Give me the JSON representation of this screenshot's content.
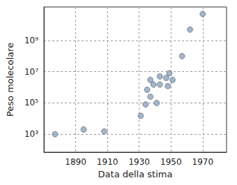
{
  "chart_data": {
    "type": "scatter",
    "x_label": "Data della stima",
    "y_label": "Peso molecolare",
    "log": "y",
    "grid": true,
    "color": "#8fa3bb",
    "marker": "circle",
    "x": [
      1877,
      1895,
      1908,
      1931,
      1934,
      1935,
      1937,
      1937,
      1939,
      1941,
      1943,
      1943,
      1947,
      1948,
      1949,
      1951,
      1957,
      1962,
      1970
    ],
    "values": [
      1000,
      2000,
      1500,
      15000,
      80000,
      700000,
      3000000,
      250000,
      1500000,
      100000,
      1500000,
      5000000,
      4000000,
      1200000,
      8000000,
      3000000,
      100000000,
      5000000000,
      50000000000
    ],
    "xlim": [
      1870,
      1985
    ],
    "xticks": [
      1890,
      1910,
      1930,
      1950,
      1970
    ],
    "ylim": [
      70,
      140000000000
    ],
    "yticks": [
      {
        "value": 1000,
        "label": "10³"
      },
      {
        "value": 100000,
        "label": "10⁵"
      },
      {
        "value": 10000000,
        "label": "10⁷"
      },
      {
        "value": 1000000000,
        "label": "10⁹"
      }
    ]
  }
}
